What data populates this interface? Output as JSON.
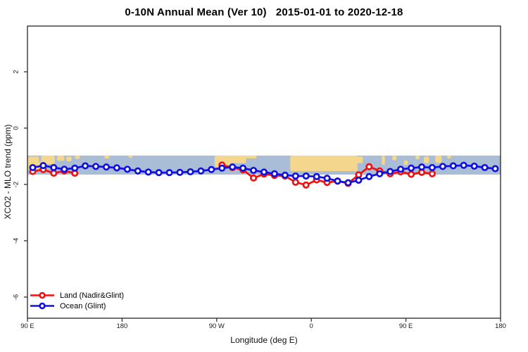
{
  "title": "0-10N Annual Mean (Ver 10)   2015-01-01 to 2020-12-18",
  "legend": {
    "items": [
      {
        "id": "land",
        "label": "Land (Nadir&Glint)",
        "color": "#ee1111"
      },
      {
        "id": "ocean",
        "label": "Ocean (Glint)",
        "color": "#1111dd"
      }
    ]
  },
  "chart_data": {
    "type": "line",
    "title": "0-10N Annual Mean (Ver 10)   2015-01-01 to 2020-12-18",
    "xlabel": "Longitude (deg E)",
    "ylabel": "XCO2 - MLO trend (ppm)",
    "xlim": [
      90,
      540
    ],
    "ylim": [
      -6.75,
      3.6
    ],
    "grid": "off",
    "legend_position": "bottom-left",
    "x_ticks": [
      {
        "lon": 90,
        "label": "90 E"
      },
      {
        "lon": 180,
        "label": "180"
      },
      {
        "lon": 270,
        "label": "90 W"
      },
      {
        "lon": 360,
        "label": "0"
      },
      {
        "lon": 450,
        "label": "90 E"
      },
      {
        "lon": 540,
        "label": "180"
      }
    ],
    "y_ticks": [
      {
        "value": 2,
        "label": "2"
      },
      {
        "value": 0,
        "label": "0"
      },
      {
        "value": -2,
        "label": "-2"
      },
      {
        "value": -4,
        "label": "-4"
      },
      {
        "value": -6,
        "label": "-6"
      }
    ],
    "x": [
      95,
      105,
      115,
      125,
      135,
      145,
      155,
      165,
      175,
      185,
      195,
      205,
      215,
      225,
      235,
      245,
      255,
      265,
      275,
      285,
      295,
      305,
      315,
      325,
      335,
      345,
      355,
      365,
      375,
      385,
      395,
      405,
      415,
      425,
      435,
      445,
      455,
      465,
      475,
      485,
      495,
      505,
      515,
      525,
      535
    ],
    "series": [
      {
        "id": "land",
        "name": "Land (Nadir&Glint)",
        "color": "#ee1111",
        "values": [
          -1.54,
          -1.47,
          -1.6,
          -1.52,
          -1.6,
          null,
          null,
          null,
          null,
          null,
          null,
          null,
          null,
          null,
          null,
          null,
          null,
          null,
          -1.31,
          -1.4,
          -1.48,
          -1.77,
          -1.63,
          -1.68,
          -1.7,
          -1.92,
          -2.02,
          -1.84,
          -1.93,
          -1.88,
          -1.96,
          -1.66,
          -1.37,
          -1.52,
          -1.62,
          -1.55,
          -1.64,
          -1.57,
          -1.62,
          null,
          null,
          null,
          null,
          null,
          null
        ]
      },
      {
        "id": "ocean",
        "name": "Ocean (Glint)",
        "color": "#1111dd",
        "values": [
          -1.4,
          -1.33,
          -1.4,
          -1.46,
          -1.42,
          -1.34,
          -1.36,
          -1.38,
          -1.41,
          -1.46,
          -1.52,
          -1.56,
          -1.58,
          -1.58,
          -1.57,
          -1.55,
          -1.52,
          -1.47,
          -1.42,
          -1.38,
          -1.42,
          -1.5,
          -1.56,
          -1.62,
          -1.67,
          -1.7,
          -1.7,
          -1.72,
          -1.78,
          -1.88,
          -1.94,
          -1.85,
          -1.72,
          -1.62,
          -1.54,
          -1.46,
          -1.42,
          -1.38,
          -1.4,
          -1.36,
          -1.34,
          -1.32,
          -1.35,
          -1.4,
          -1.44
        ]
      }
    ],
    "map_band": {
      "description": "0-10N latitude strip of world map drawn across plot",
      "ocean_color": "#a9bdd6",
      "land_color": "#f5d68d",
      "value_top": -0.975,
      "value_bottom": -1.65,
      "land_patches": [
        {
          "lon0": 90.5,
          "lon1": 101,
          "f0": 0.05,
          "f1": 0.8
        },
        {
          "lon0": 100,
          "lon1": 106,
          "f0": 0.35,
          "f1": 0.65
        },
        {
          "lon0": 103,
          "lon1": 116,
          "f0": 0.0,
          "f1": 0.45
        },
        {
          "lon0": 118,
          "lon1": 125,
          "f0": 0.0,
          "f1": 0.28
        },
        {
          "lon0": 127,
          "lon1": 132,
          "f0": 0.05,
          "f1": 0.3
        },
        {
          "lon0": 135,
          "lon1": 140,
          "f0": 0.0,
          "f1": 0.18
        },
        {
          "lon0": 163,
          "lon1": 168,
          "f0": 0.0,
          "f1": 0.15
        },
        {
          "lon0": 186,
          "lon1": 190,
          "f0": 0.0,
          "f1": 0.12
        },
        {
          "lon0": 268,
          "lon1": 283,
          "f0": 0.0,
          "f1": 0.6
        },
        {
          "lon0": 280,
          "lon1": 298,
          "f0": 0.0,
          "f1": 0.4
        },
        {
          "lon0": 296,
          "lon1": 308,
          "f0": 0.0,
          "f1": 0.15
        },
        {
          "lon0": 340,
          "lon1": 404,
          "f0": 0.0,
          "f1": 0.82
        },
        {
          "lon0": 403,
          "lon1": 409,
          "f0": 0.05,
          "f1": 0.4
        },
        {
          "lon0": 427,
          "lon1": 430,
          "f0": 0.0,
          "f1": 0.5
        },
        {
          "lon0": 437,
          "lon1": 441,
          "f0": 0.0,
          "f1": 0.25
        },
        {
          "lon0": 448,
          "lon1": 452,
          "f0": 0.25,
          "f1": 0.5
        },
        {
          "lon0": 459,
          "lon1": 463,
          "f0": 0.0,
          "f1": 0.2
        },
        {
          "lon0": 467,
          "lon1": 472,
          "f0": 0.05,
          "f1": 0.4
        },
        {
          "lon0": 478,
          "lon1": 484,
          "f0": 0.0,
          "f1": 0.38
        },
        {
          "lon0": 489,
          "lon1": 493,
          "f0": 0.0,
          "f1": 0.15
        }
      ]
    }
  }
}
